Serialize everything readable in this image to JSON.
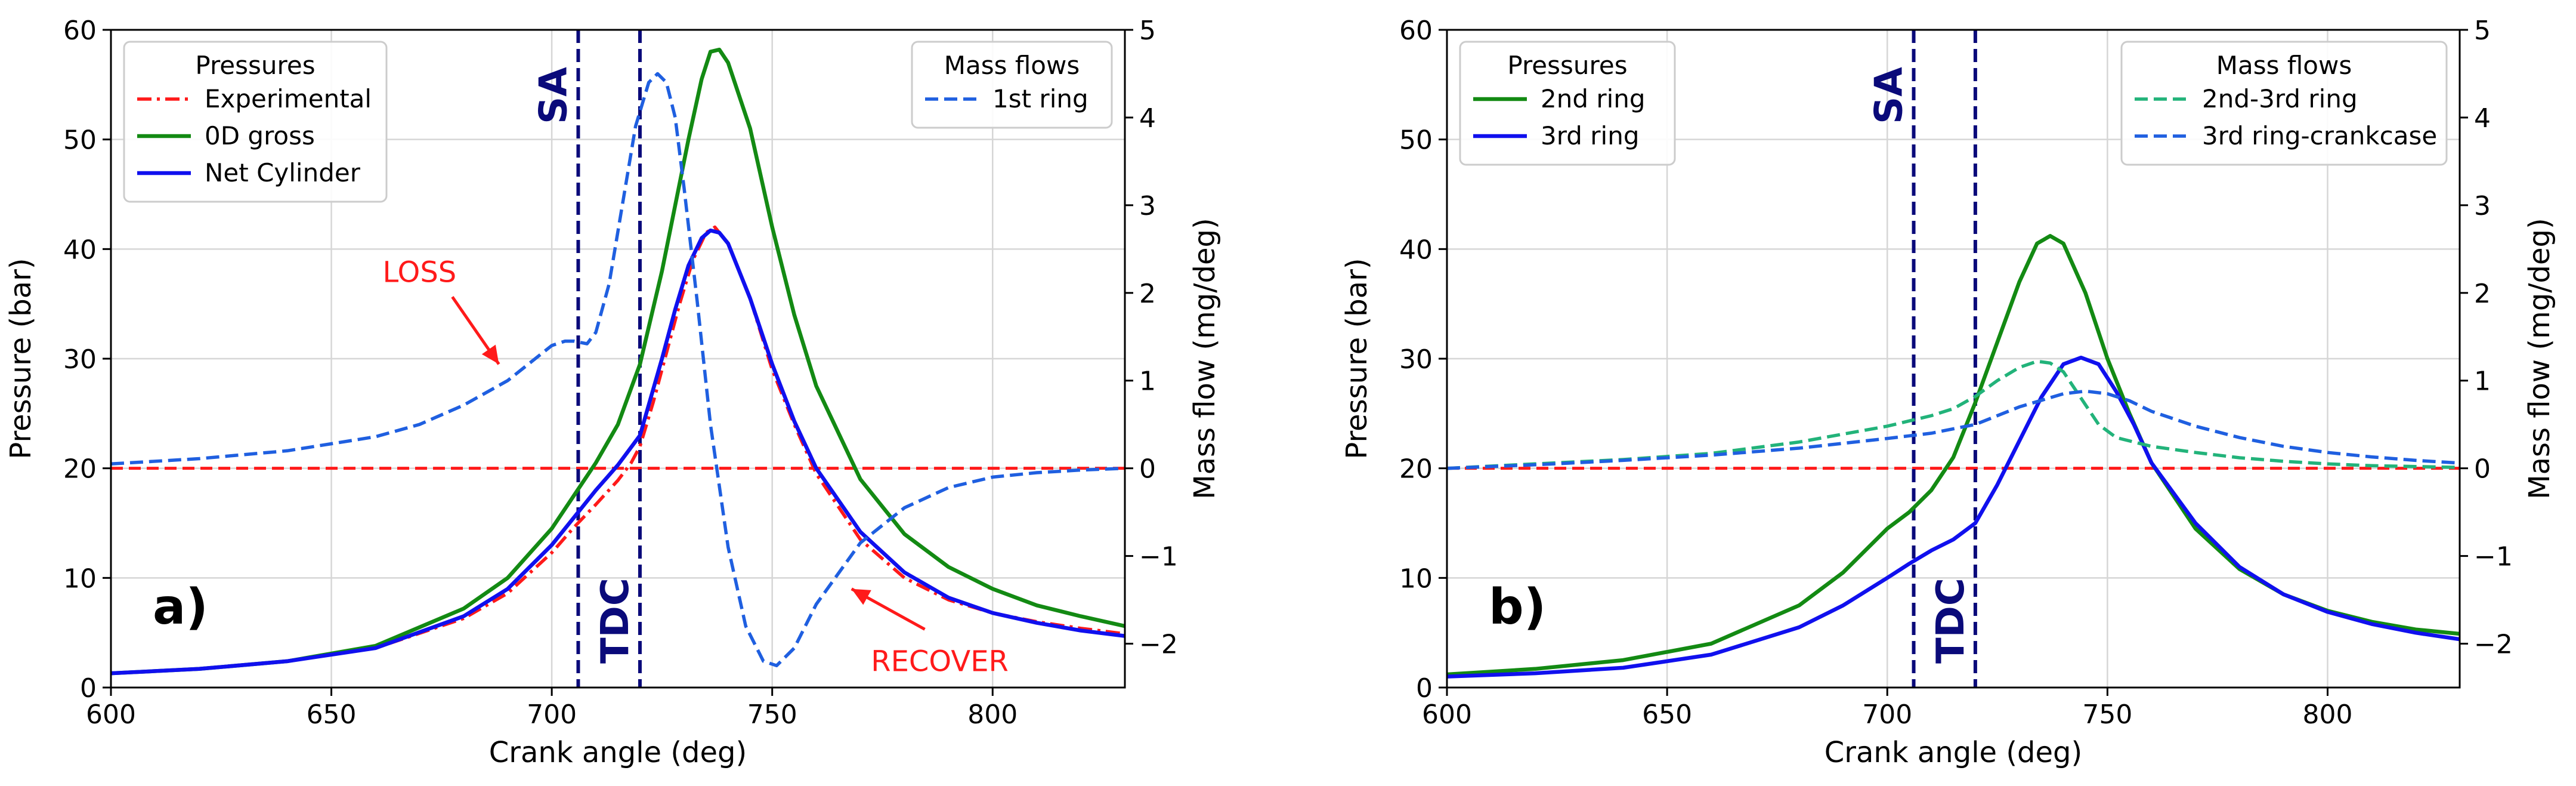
{
  "chart_data": [
    {
      "type": "line",
      "panel_label": "a)",
      "xlabel": "Crank angle (deg)",
      "ylabel": "Pressure (bar)",
      "y2label": "Mass flow (mg/deg)",
      "xlim": [
        600,
        830
      ],
      "ylim": [
        0,
        60
      ],
      "y2lim": [
        -2.5,
        5
      ],
      "xticks": [
        600,
        650,
        700,
        750,
        800
      ],
      "yticks": [
        0,
        10,
        20,
        30,
        40,
        50,
        60
      ],
      "y2ticks": [
        -2,
        -1,
        0,
        1,
        2,
        3,
        4,
        5
      ],
      "y2ticklabels": [
        "−2",
        "−1",
        "0",
        "1",
        "2",
        "3",
        "4",
        "5"
      ],
      "grid": true,
      "vlines": [
        {
          "label": "SA",
          "x": 706,
          "color": "#0a0a7a"
        },
        {
          "label": "TDC",
          "x": 720,
          "color": "#0a0a7a"
        }
      ],
      "zero_flow_line": {
        "y2": 0,
        "color": "#ff1a1a"
      },
      "legend_left": {
        "title": "Pressures",
        "position": "upper left",
        "entries": [
          {
            "name": "Experimental",
            "color": "#ff1a1a",
            "style": "dashdot"
          },
          {
            "name": "0D gross",
            "color": "#138a13",
            "style": "solid"
          },
          {
            "name": "Net Cylinder",
            "color": "#1010ee",
            "style": "solid"
          }
        ]
      },
      "legend_right": {
        "title": "Mass flows",
        "position": "upper right",
        "entries": [
          {
            "name": "1st ring",
            "color": "#1f5fe0",
            "style": "dashed"
          }
        ]
      },
      "annotations": [
        {
          "text": "LOSS",
          "color": "#ff1a1a",
          "x": 670,
          "y": 37,
          "arrow_to": [
            688,
            29.5
          ]
        },
        {
          "text": "RECOVER",
          "color": "#ff1a1a",
          "x": 788,
          "y": 1.5,
          "arrow_to": [
            768,
            9
          ]
        }
      ],
      "series": [
        {
          "name": "Experimental",
          "axis": "left",
          "color": "#ff1a1a",
          "style": "dashdot",
          "x": [
            600,
            620,
            640,
            660,
            680,
            690,
            700,
            705,
            710,
            715,
            718,
            720,
            723,
            726,
            729,
            732,
            735,
            737,
            740,
            745,
            750,
            755,
            760,
            770,
            780,
            790,
            800,
            810,
            820,
            830
          ],
          "y": [
            1.3,
            1.7,
            2.4,
            3.6,
            6.3,
            8.6,
            12.3,
            14.6,
            16.7,
            18.9,
            20.5,
            22,
            26,
            30.5,
            35,
            39,
            41.5,
            42,
            40.5,
            35.5,
            29,
            24,
            19.5,
            13.5,
            10,
            8,
            6.8,
            6,
            5.4,
            4.9
          ]
        },
        {
          "name": "0D gross",
          "axis": "left",
          "color": "#138a13",
          "style": "solid",
          "x": [
            600,
            620,
            640,
            660,
            680,
            690,
            700,
            705,
            710,
            715,
            720,
            725,
            728,
            731,
            734,
            736,
            738,
            740,
            745,
            750,
            755,
            760,
            770,
            780,
            790,
            800,
            810,
            820,
            830
          ],
          "y": [
            1.3,
            1.7,
            2.4,
            3.8,
            7.2,
            10,
            14.5,
            17.5,
            20.5,
            24,
            29.5,
            38,
            44,
            50,
            55.5,
            58,
            58.2,
            57,
            51,
            42,
            34,
            27.5,
            19,
            14,
            11,
            9,
            7.5,
            6.5,
            5.6
          ]
        },
        {
          "name": "Net Cylinder",
          "axis": "left",
          "color": "#1010ee",
          "style": "solid",
          "x": [
            600,
            620,
            640,
            660,
            680,
            690,
            700,
            705,
            710,
            715,
            720,
            725,
            728,
            731,
            734,
            736,
            738,
            740,
            745,
            750,
            755,
            760,
            770,
            780,
            790,
            800,
            810,
            820,
            830
          ],
          "y": [
            1.3,
            1.7,
            2.4,
            3.6,
            6.5,
            9,
            13,
            15.5,
            18,
            20.3,
            23,
            30,
            34.5,
            38.5,
            41,
            41.7,
            41.5,
            40.5,
            35.5,
            29.5,
            24.3,
            20,
            14.2,
            10.5,
            8.2,
            6.8,
            5.9,
            5.2,
            4.7
          ]
        },
        {
          "name": "1st ring",
          "axis": "right",
          "color": "#1f5fe0",
          "style": "dashed",
          "x": [
            600,
            620,
            640,
            660,
            670,
            680,
            690,
            695,
            700,
            703,
            705,
            708,
            710,
            713,
            716,
            719,
            722,
            724,
            726,
            728,
            730,
            733,
            736,
            740,
            744,
            748,
            751,
            755,
            760,
            770,
            780,
            790,
            800,
            810,
            820,
            830
          ],
          "y": [
            0.05,
            0.11,
            0.2,
            0.36,
            0.5,
            0.72,
            1.0,
            1.2,
            1.4,
            1.45,
            1.45,
            1.42,
            1.55,
            2.1,
            3.0,
            3.9,
            4.4,
            4.5,
            4.4,
            4.0,
            3.2,
            1.9,
            0.5,
            -0.9,
            -1.8,
            -2.2,
            -2.25,
            -2.05,
            -1.55,
            -0.85,
            -0.45,
            -0.22,
            -0.1,
            -0.05,
            -0.02,
            0.0
          ]
        }
      ]
    },
    {
      "type": "line",
      "panel_label": "b)",
      "xlabel": "Crank angle (deg)",
      "ylabel": "Pressure (bar)",
      "y2label": "Mass flow (mg/deg)",
      "xlim": [
        600,
        830
      ],
      "ylim": [
        0,
        60
      ],
      "y2lim": [
        -2.5,
        5
      ],
      "xticks": [
        600,
        650,
        700,
        750,
        800
      ],
      "yticks": [
        0,
        10,
        20,
        30,
        40,
        50,
        60
      ],
      "y2ticks": [
        -2,
        -1,
        0,
        1,
        2,
        3,
        4,
        5
      ],
      "y2ticklabels": [
        "−2",
        "−1",
        "0",
        "1",
        "2",
        "3",
        "4",
        "5"
      ],
      "grid": true,
      "vlines": [
        {
          "label": "SA",
          "x": 706,
          "color": "#0a0a7a"
        },
        {
          "label": "TDC",
          "x": 720,
          "color": "#0a0a7a"
        }
      ],
      "zero_flow_line": {
        "y2": 0,
        "color": "#ff1a1a"
      },
      "legend_left": {
        "title": "Pressures",
        "position": "upper left",
        "entries": [
          {
            "name": "2nd ring",
            "color": "#138a13",
            "style": "solid"
          },
          {
            "name": "3rd ring",
            "color": "#1010ee",
            "style": "solid"
          }
        ]
      },
      "legend_right": {
        "title": "Mass flows",
        "position": "upper right",
        "entries": [
          {
            "name": "2nd-3rd ring",
            "color": "#22b37a",
            "style": "dashed"
          },
          {
            "name": "3rd ring-crankcase",
            "color": "#1f5fe0",
            "style": "dashed"
          }
        ]
      },
      "annotations": [],
      "series": [
        {
          "name": "2nd ring",
          "axis": "left",
          "color": "#138a13",
          "style": "solid",
          "x": [
            600,
            620,
            640,
            660,
            680,
            690,
            700,
            705,
            710,
            715,
            720,
            725,
            730,
            734,
            737,
            740,
            745,
            750,
            755,
            760,
            770,
            780,
            790,
            800,
            810,
            820,
            830
          ],
          "y": [
            1.2,
            1.7,
            2.5,
            4,
            7.5,
            10.5,
            14.5,
            16,
            18,
            21,
            26,
            31.5,
            37,
            40.5,
            41.2,
            40.5,
            36,
            30,
            25,
            20.5,
            14.5,
            10.8,
            8.5,
            7,
            6,
            5.3,
            4.9
          ]
        },
        {
          "name": "3rd ring",
          "axis": "left",
          "color": "#1010ee",
          "style": "solid",
          "x": [
            600,
            620,
            640,
            660,
            680,
            690,
            700,
            705,
            710,
            715,
            720,
            725,
            730,
            735,
            740,
            744,
            748,
            752,
            756,
            760,
            770,
            780,
            790,
            800,
            810,
            820,
            830
          ],
          "y": [
            1,
            1.3,
            1.8,
            3,
            5.5,
            7.5,
            10,
            11.3,
            12.5,
            13.5,
            15,
            18.5,
            22.5,
            26.5,
            29.5,
            30.1,
            29.5,
            27,
            24,
            20.5,
            15,
            11,
            8.5,
            6.9,
            5.8,
            5,
            4.4
          ]
        },
        {
          "name": "2nd-3rd ring",
          "axis": "right",
          "color": "#22b37a",
          "style": "dashed",
          "x": [
            600,
            620,
            640,
            660,
            680,
            700,
            710,
            715,
            720,
            725,
            730,
            734,
            737,
            740,
            744,
            748,
            752,
            756,
            760,
            770,
            780,
            790,
            800,
            810,
            820,
            830
          ],
          "y": [
            0,
            0.05,
            0.1,
            0.17,
            0.3,
            0.48,
            0.6,
            0.68,
            0.82,
            1.0,
            1.15,
            1.22,
            1.2,
            1.1,
            0.8,
            0.5,
            0.35,
            0.3,
            0.25,
            0.18,
            0.12,
            0.08,
            0.05,
            0.03,
            0.02,
            0.01
          ]
        },
        {
          "name": "3rd ring-crankcase",
          "axis": "right",
          "color": "#1f5fe0",
          "style": "dashed",
          "x": [
            600,
            620,
            640,
            660,
            680,
            700,
            710,
            720,
            730,
            740,
            745,
            750,
            755,
            760,
            770,
            780,
            790,
            800,
            810,
            820,
            830
          ],
          "y": [
            0,
            0.04,
            0.09,
            0.15,
            0.23,
            0.34,
            0.4,
            0.5,
            0.7,
            0.85,
            0.88,
            0.85,
            0.77,
            0.65,
            0.48,
            0.35,
            0.25,
            0.18,
            0.13,
            0.09,
            0.06
          ]
        }
      ]
    }
  ]
}
